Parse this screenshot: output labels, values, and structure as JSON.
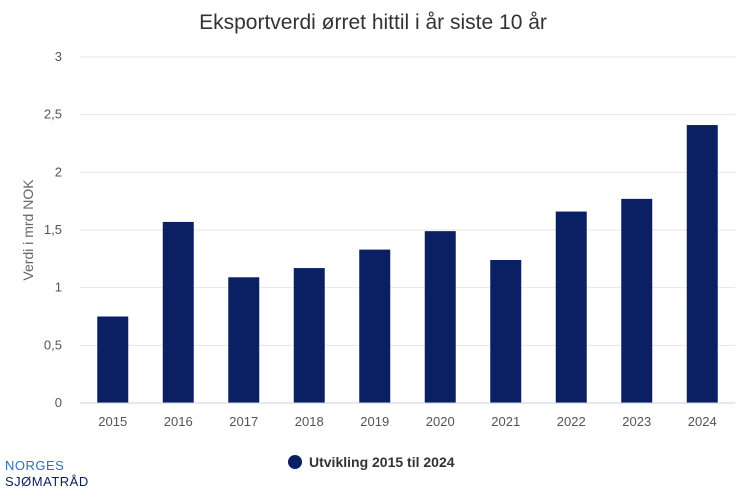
{
  "chart_data": {
    "type": "bar",
    "title": "Eksportverdi ørret hittil i år siste 10 år",
    "xlabel": "",
    "ylabel": "Verdi i mrd NOK",
    "categories": [
      "2015",
      "2016",
      "2017",
      "2018",
      "2019",
      "2020",
      "2021",
      "2022",
      "2023",
      "2024"
    ],
    "series": [
      {
        "name": "Utvikling 2015 til 2024",
        "values": [
          0.75,
          1.57,
          1.09,
          1.17,
          1.33,
          1.49,
          1.24,
          1.66,
          1.77,
          2.41
        ],
        "color": "#0b1f63"
      }
    ],
    "yticks": [
      "0",
      "0,5",
      "1",
      "1,5",
      "2",
      "2,5",
      "3"
    ],
    "ylim": [
      0,
      3
    ],
    "grid": true,
    "legend_position": "bottom-center"
  },
  "logo": {
    "line1": "NORGES",
    "line2": "SJØMATRÅD"
  }
}
